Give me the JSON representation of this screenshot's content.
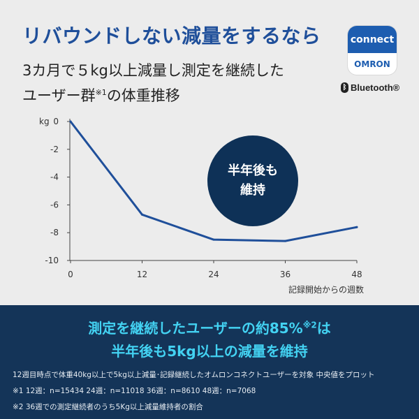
{
  "headline": "リバウンドしない減量をするなら",
  "subtitle": {
    "line1": "3カ月で５kg以上減量し測定を継続した",
    "line2_main": "ユーザー群",
    "line2_sup": "※1",
    "line2_tail": "の体重推移"
  },
  "app_icon": {
    "top_text": "connect",
    "bottom_text": "OMRON"
  },
  "bluetooth_label": "Bluetooth®",
  "badge": {
    "text": "半年後も\n維持"
  },
  "chart_data": {
    "type": "line",
    "ylabel": "kg",
    "xlabel": "記録開始からの週数",
    "xlim": [
      0,
      48
    ],
    "ylim": [
      -10,
      0
    ],
    "x_ticks": [
      0,
      12,
      24,
      36,
      48
    ],
    "y_ticks": [
      0,
      -2,
      -4,
      -6,
      -8,
      -10
    ],
    "series": [
      {
        "x": [
          0,
          12,
          24,
          36,
          48
        ],
        "values": [
          0,
          -6.7,
          -8.5,
          -8.6,
          -7.6
        ]
      }
    ],
    "grid": false,
    "color": "#1f4f9a"
  },
  "bottom": {
    "claim_line1_main": "測定を継続したユーザーの約85%",
    "claim_line1_sup": "※2",
    "claim_line1_tail": "は",
    "claim_line2": "半年後も5kg以上の減量を維持",
    "note1": "12週目時点で体重40kg以上で5kg以上減量･記録継続したオムロンコネクトユーザーを対象  中央値をプロット",
    "note2": "※1  12週：n=15434   24週：n=11018   36週：n=8610   48週：n=7068",
    "note3": "※2  36週での測定継続者のうち5Kg以上減量維持者の割合"
  },
  "colors": {
    "headline": "#1f4f9a",
    "line": "#1f4f9a",
    "badge_bg": "#0e3157",
    "bottom_bg": "#143458",
    "claim": "#43d2f2"
  }
}
